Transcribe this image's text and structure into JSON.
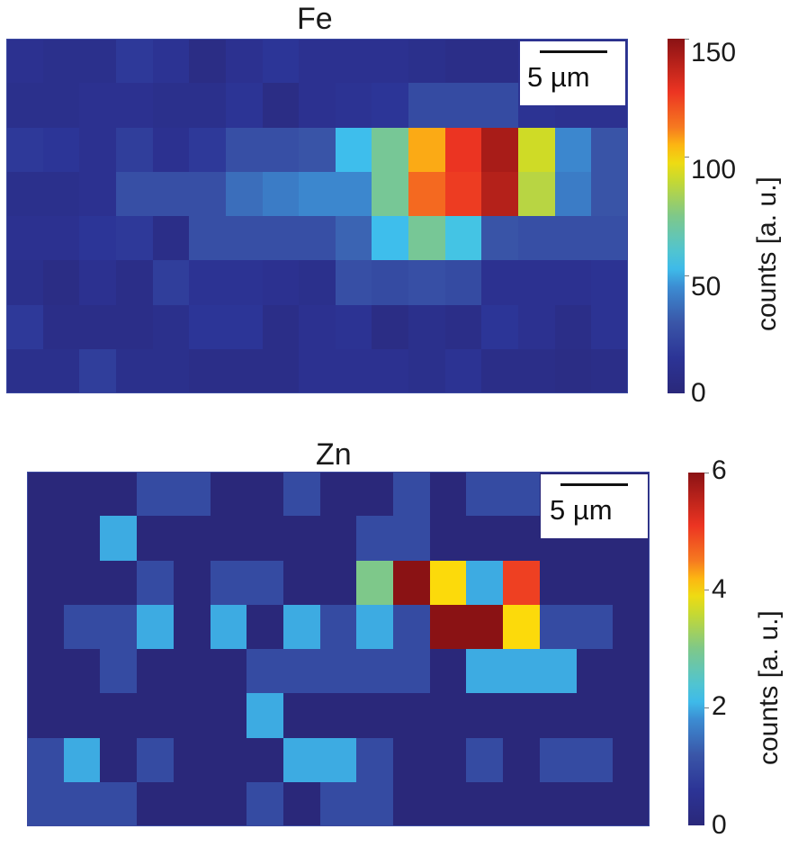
{
  "chart_data": [
    {
      "type": "heatmap",
      "title": "Fe",
      "rows": 8,
      "cols": 17,
      "colormap": "jet",
      "clim": [
        0,
        155
      ],
      "colorbar": {
        "label": "counts [a. u.]",
        "ticks": [
          0,
          50,
          100,
          150
        ]
      },
      "scalebar": "5 µm",
      "values": [
        [
          12,
          10,
          10,
          18,
          14,
          6,
          12,
          16,
          12,
          12,
          12,
          10,
          8,
          8,
          12,
          10,
          10
        ],
        [
          10,
          10,
          12,
          12,
          10,
          10,
          15,
          6,
          12,
          14,
          16,
          26,
          26,
          26,
          14,
          12,
          12
        ],
        [
          18,
          16,
          12,
          20,
          12,
          18,
          28,
          28,
          30,
          55,
          75,
          110,
          132,
          148,
          95,
          45,
          30
        ],
        [
          10,
          10,
          12,
          28,
          28,
          28,
          38,
          42,
          45,
          45,
          75,
          120,
          130,
          145,
          90,
          42,
          30
        ],
        [
          12,
          12,
          16,
          18,
          8,
          28,
          28,
          28,
          28,
          35,
          55,
          75,
          58,
          30,
          28,
          28,
          28
        ],
        [
          10,
          6,
          12,
          8,
          20,
          14,
          14,
          12,
          10,
          28,
          26,
          28,
          26,
          12,
          12,
          12,
          14
        ],
        [
          18,
          8,
          8,
          8,
          10,
          16,
          16,
          8,
          12,
          14,
          6,
          10,
          8,
          16,
          12,
          8,
          14
        ],
        [
          10,
          10,
          20,
          10,
          10,
          8,
          8,
          8,
          12,
          12,
          12,
          10,
          14,
          8,
          8,
          6,
          8
        ]
      ]
    },
    {
      "type": "heatmap",
      "title": "Zn",
      "rows": 8,
      "cols": 17,
      "colormap": "jet",
      "clim": [
        0,
        6
      ],
      "colorbar": {
        "label": "counts [a. u.]",
        "ticks": [
          0,
          2,
          4,
          6
        ]
      },
      "scalebar": "5 µm",
      "values": [
        [
          0,
          0,
          0,
          1,
          1,
          0,
          0,
          1,
          0,
          0,
          1,
          0,
          1,
          1,
          0,
          0,
          0
        ],
        [
          0,
          0,
          2,
          0,
          0,
          0,
          0,
          0,
          0,
          1,
          1,
          0,
          0,
          0,
          0,
          0,
          0
        ],
        [
          0,
          0,
          0,
          1,
          0,
          1,
          1,
          0,
          0,
          3,
          6,
          4,
          2,
          5,
          0,
          0,
          0
        ],
        [
          0,
          1,
          1,
          2,
          0,
          2,
          0,
          2,
          1,
          2,
          1,
          6,
          6,
          4,
          1,
          1,
          0
        ],
        [
          0,
          0,
          1,
          0,
          0,
          0,
          1,
          1,
          1,
          1,
          1,
          0,
          2,
          2,
          2,
          0,
          0
        ],
        [
          0,
          0,
          0,
          0,
          0,
          0,
          2,
          0,
          0,
          0,
          0,
          0,
          0,
          0,
          0,
          0,
          0
        ],
        [
          1,
          2,
          0,
          1,
          0,
          0,
          0,
          2,
          2,
          1,
          0,
          0,
          1,
          0,
          1,
          1,
          0
        ],
        [
          1,
          1,
          1,
          0,
          0,
          0,
          1,
          0,
          1,
          1,
          0,
          0,
          0,
          0,
          0,
          0,
          0
        ]
      ]
    }
  ],
  "panels": {
    "fe": {
      "title": "Fe",
      "scalebar_label": "5 µm",
      "colorbar_label": "counts [a. u.]",
      "ticks": [
        "150",
        "100",
        "50",
        "0"
      ]
    },
    "zn": {
      "title": "Zn",
      "scalebar_label": "5 µm",
      "colorbar_label": "counts [a. u.]",
      "ticks": [
        "6",
        "4",
        "2",
        "0"
      ]
    }
  }
}
